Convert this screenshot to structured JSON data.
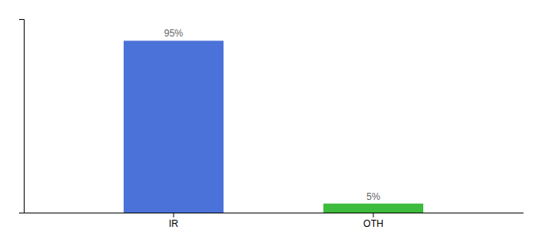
{
  "chart_data": {
    "type": "bar",
    "categories": [
      "IR",
      "OTH"
    ],
    "values": [
      95,
      5
    ],
    "value_labels": [
      "95%",
      "5%"
    ],
    "colors": [
      "#4B72D8",
      "#3dbb3d"
    ],
    "ylim": [
      0,
      107
    ],
    "yticks": [],
    "data_labels": true,
    "tick_labels": "x"
  }
}
